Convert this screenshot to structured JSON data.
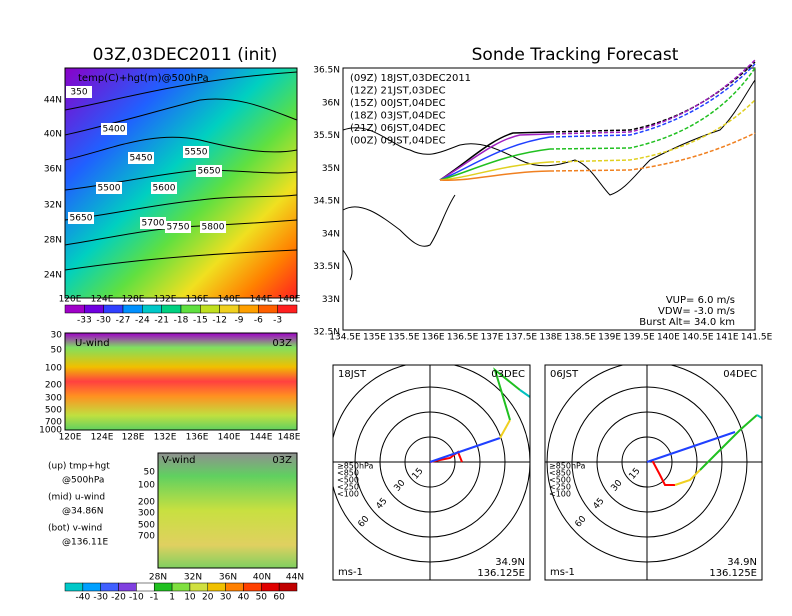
{
  "left_map": {
    "title": "03Z,03DEC2011 (init)",
    "label": "temp(C)+hgt(m)@500hPa",
    "yticks": [
      "44N",
      "40N",
      "36N",
      "32N",
      "28N",
      "24N"
    ],
    "xticks": [
      "120E",
      "124E",
      "128E",
      "132E",
      "136E",
      "140E",
      "144E",
      "148E"
    ],
    "contours": [
      "350",
      "5400",
      "5450",
      "5500",
      "5550",
      "5600",
      "5650",
      "5650",
      "5700",
      "5750",
      "5800"
    ],
    "colorbar": [
      "-33",
      "-30",
      "-27",
      "-24",
      "-21",
      "-18",
      "-15",
      "-12",
      "-9",
      "-6",
      "-3"
    ]
  },
  "u_panel": {
    "label": "U-wind",
    "time": "03Z",
    "yticks": [
      "30",
      "50",
      "100",
      "200",
      "300",
      "500",
      "700",
      "1000"
    ],
    "xticks": [
      "120E",
      "124E",
      "128E",
      "132E",
      "136E",
      "140E",
      "144E",
      "148E"
    ]
  },
  "v_panel": {
    "label": "V-wind",
    "time": "03Z",
    "yticks": [
      "50",
      "100",
      "200",
      "300",
      "500",
      "700"
    ],
    "xticks": [
      "28N",
      "32N",
      "36N",
      "40N",
      "44N"
    ]
  },
  "notes": [
    "(up) tmp+hgt",
    "@500hPa",
    "(mid) u-wind",
    "@34.86N",
    "(bot) v-wind",
    "@136.11E"
  ],
  "wind_colorbar": [
    "-40",
    "-30",
    "-20",
    "-10",
    "-1",
    "1",
    "10",
    "20",
    "30",
    "40",
    "50",
    "60"
  ],
  "track": {
    "title": "Sonde Tracking Forecast",
    "legend": [
      "(09Z) 18JST,03DEC2011",
      "(12Z) 21JST,03DEC",
      "(15Z) 00JST,04DEC",
      "(18Z) 03JST,04DEC",
      "(21Z) 06JST,04DEC",
      "(00Z) 09JST,04DEC"
    ],
    "yticks": [
      "36.5N",
      "36N",
      "35.5N",
      "35N",
      "34.5N",
      "34N",
      "33.5N",
      "33N",
      "32.5N"
    ],
    "xticks": [
      "134.5E",
      "135E",
      "135.5E",
      "136E",
      "136.5E",
      "137E",
      "137.5E",
      "138E",
      "138.5E",
      "139E",
      "139.5E",
      "140E",
      "140.5E",
      "141E",
      "141.5E"
    ],
    "params": [
      "VUP= 6.0 m/s",
      "VDW= -3.0 m/s",
      "Burst Alt= 34.0 km"
    ]
  },
  "hodographs": [
    {
      "time": "18JST",
      "date": "03DEC",
      "levels": [
        "≥850hPa",
        "<850",
        "<500",
        "<250",
        "<100"
      ],
      "rings": [
        "15",
        "30",
        "45",
        "60"
      ],
      "unit": "ms-1",
      "lat": "34.9N",
      "lon": "136.125E"
    },
    {
      "time": "06JST",
      "date": "04DEC",
      "levels": [
        "≥850hPa",
        "<850",
        "<500",
        "<250",
        "<100"
      ],
      "rings": [
        "15",
        "30",
        "45",
        "60"
      ],
      "unit": "ms-1",
      "lat": "34.9N",
      "lon": "136.125E"
    }
  ]
}
